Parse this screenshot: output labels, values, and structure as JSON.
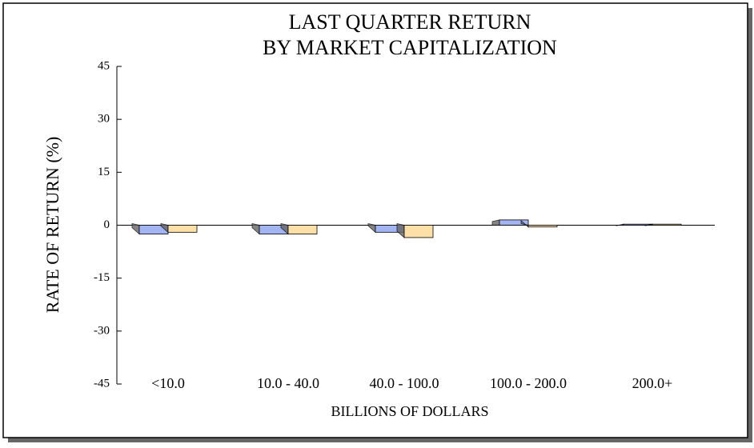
{
  "chart_data": {
    "type": "bar",
    "title": [
      "LAST QUARTER RETURN",
      "BY MARKET CAPITALIZATION"
    ],
    "x_label": "BILLIONS OF DOLLARS",
    "y_label": "RATE OF RETURN (%)",
    "categories": [
      "<10.0",
      "10.0 - 40.0",
      "40.0 - 100.0",
      "100.0 - 200.0",
      "200.0+"
    ],
    "series": [
      {
        "color": "#a3b4f2",
        "values": [
          -2.5,
          -2.5,
          -2,
          1.5,
          0.3
        ]
      },
      {
        "color": "#fde0a8",
        "values": [
          -2,
          -2.5,
          -3.5,
          -0.5,
          0.3
        ]
      }
    ],
    "ylim": [
      -45,
      45
    ],
    "yticks": [
      -45,
      -30,
      -15,
      0,
      15,
      30,
      45
    ]
  }
}
